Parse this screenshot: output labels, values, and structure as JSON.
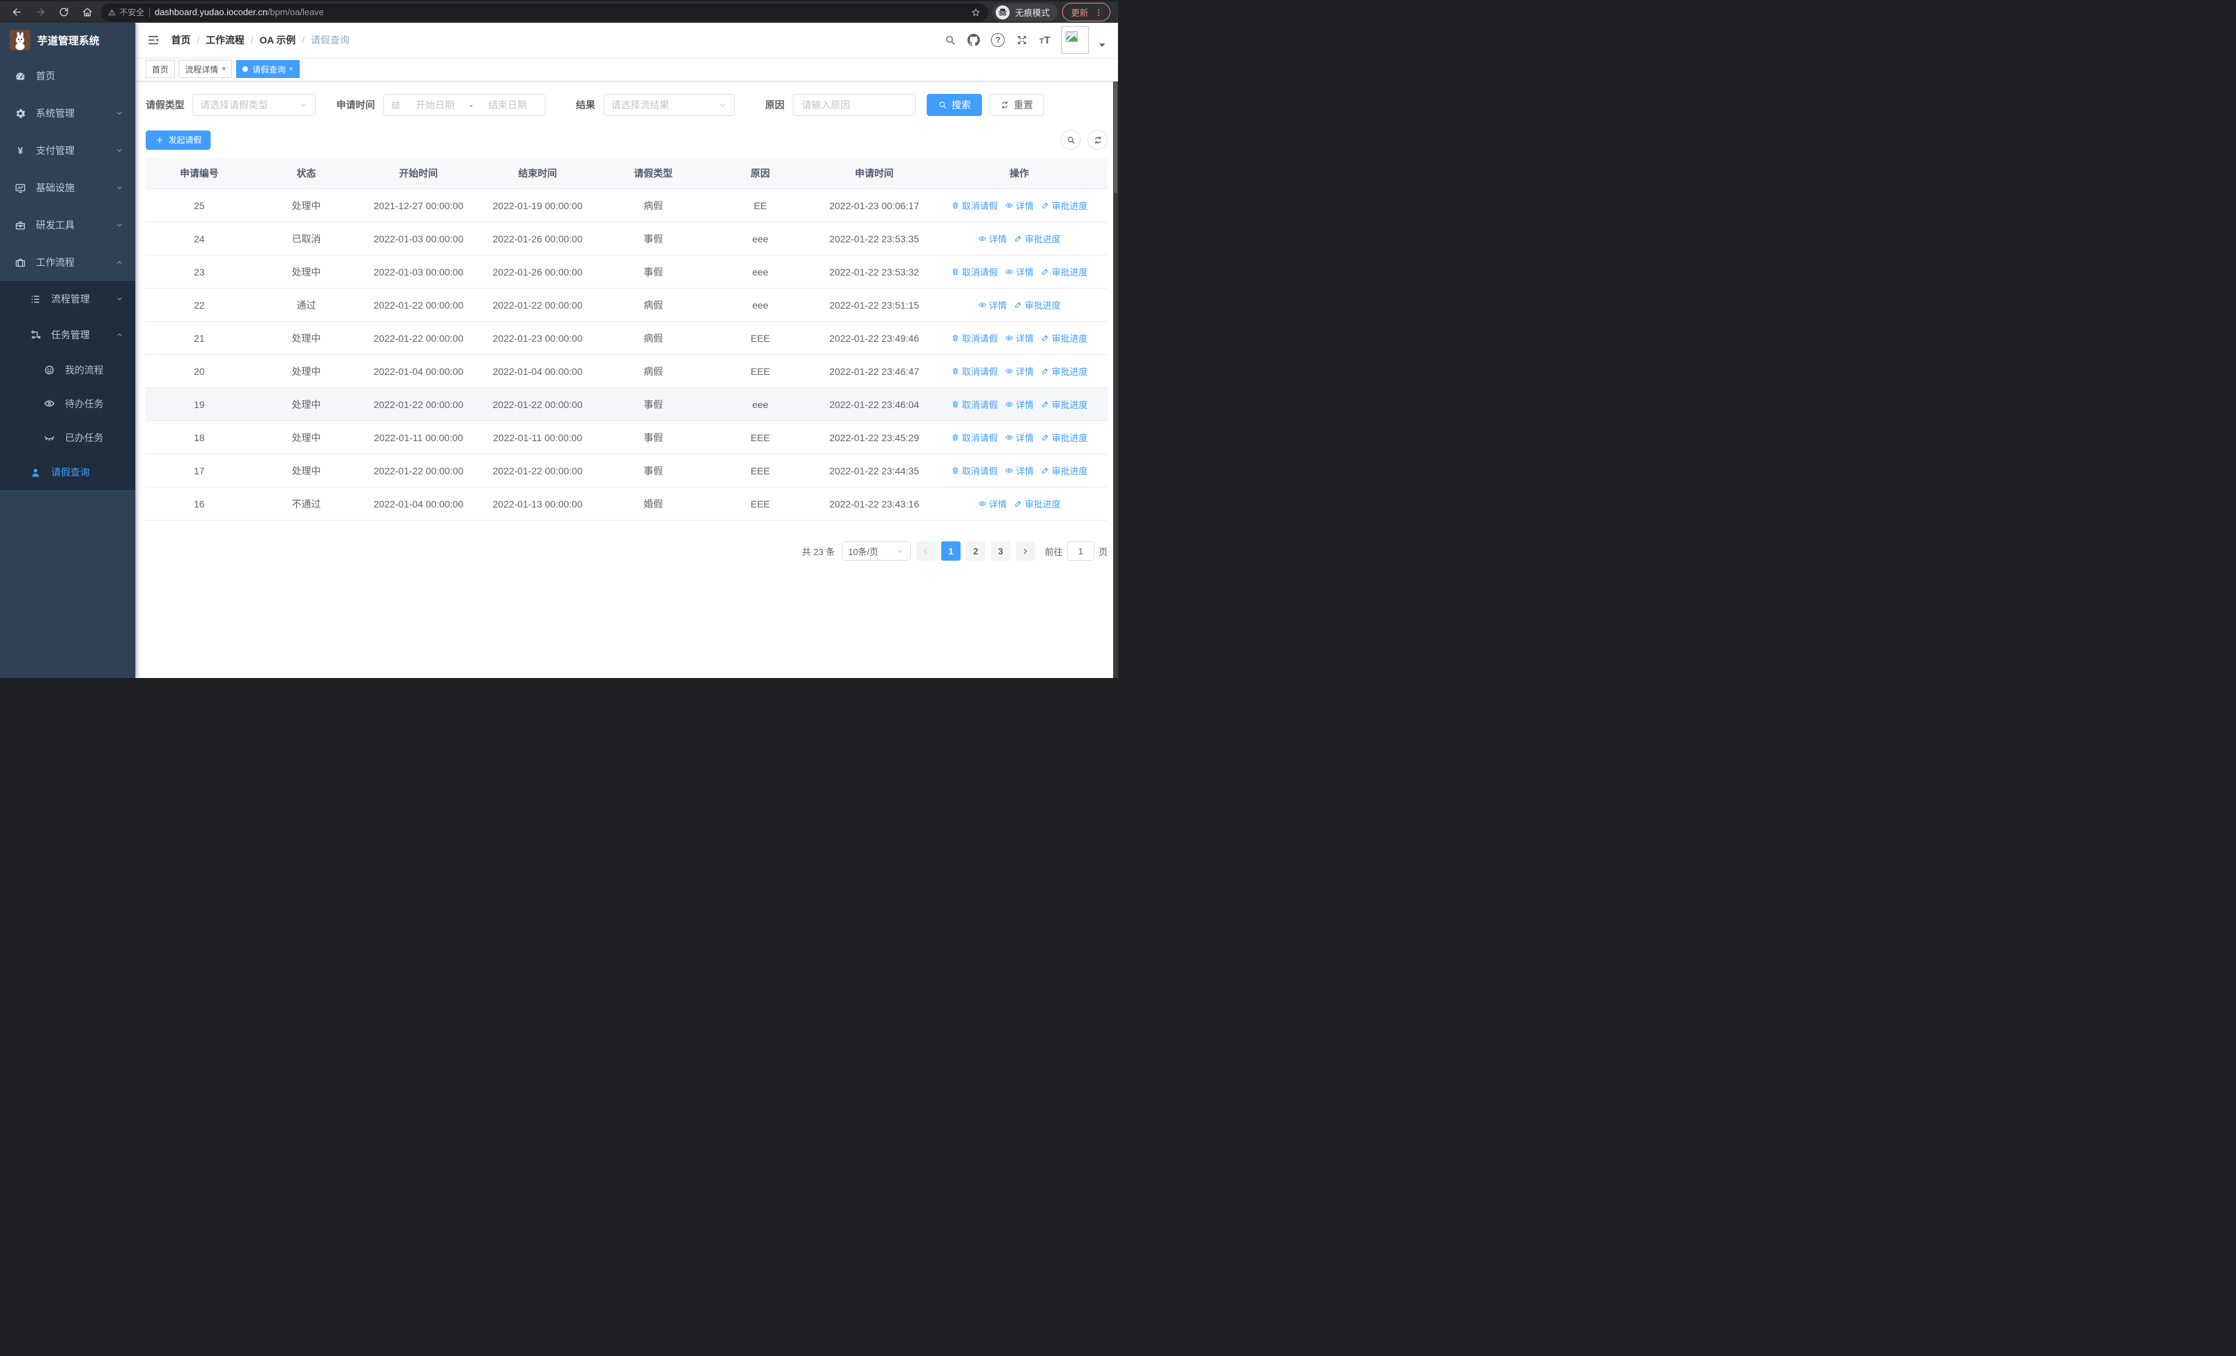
{
  "browser": {
    "security_label": "不安全",
    "url_host": "dashboard.yudao.iocoder.cn",
    "url_path": "/bpm/oa/leave",
    "incognito_label": "无痕模式",
    "update_label": "更新"
  },
  "sidebar": {
    "app_title": "芋道管理系统",
    "items": [
      {
        "label": "首页",
        "icon": "gauge-icon"
      },
      {
        "label": "系统管理",
        "icon": "gear-icon"
      },
      {
        "label": "支付管理",
        "icon": "yen-icon"
      },
      {
        "label": "基础设施",
        "icon": "monitor-icon"
      },
      {
        "label": "研发工具",
        "icon": "toolbox-icon"
      },
      {
        "label": "工作流程",
        "icon": "briefcase-icon"
      }
    ],
    "workflow_submenu": {
      "process_mgmt": "流程管理",
      "task_mgmt": "任务管理",
      "my_process": "我的流程",
      "todo_tasks": "待办任务",
      "done_tasks": "已办任务",
      "leave_query": "请假查询"
    }
  },
  "breadcrumb": {
    "items": [
      "首页",
      "工作流程",
      "OA 示例",
      "请假查询"
    ]
  },
  "tabs": [
    {
      "label": "首页"
    },
    {
      "label": "流程详情"
    },
    {
      "label": "请假查询"
    }
  ],
  "filters": {
    "leave_type_label": "请假类型",
    "leave_type_placeholder": "请选择请假类型",
    "apply_time_label": "申请时间",
    "start_placeholder": "开始日期",
    "range_separator": "-",
    "end_placeholder": "结束日期",
    "result_label": "结果",
    "result_placeholder": "请选择流结果",
    "reason_label": "原因",
    "reason_placeholder": "请输入原因",
    "search_label": "搜索",
    "reset_label": "重置"
  },
  "toolbar": {
    "create_label": "发起请假"
  },
  "table": {
    "headers": [
      "申请编号",
      "状态",
      "开始时间",
      "结束时间",
      "请假类型",
      "原因",
      "申请时间",
      "操作"
    ],
    "rows": [
      {
        "id": "25",
        "status": "处理中",
        "start_time": "2021-12-27 00:00:00",
        "end_time": "2022-01-19 00:00:00",
        "leave_type": "病假",
        "reason": "EE",
        "apply_time": "2022-01-23 00:06:17",
        "actions": [
          {
            "label": "取消请假",
            "icon": "trash",
            "name": "cancel-leave-link"
          },
          {
            "label": "详情",
            "icon": "eye",
            "name": "detail-link"
          },
          {
            "label": "审批进度",
            "icon": "edit",
            "name": "approval-progress-link"
          }
        ]
      },
      {
        "id": "24",
        "status": "已取消",
        "start_time": "2022-01-03 00:00:00",
        "end_time": "2022-01-26 00:00:00",
        "leave_type": "事假",
        "reason": "eee",
        "apply_time": "2022-01-22 23:53:35",
        "actions": [
          {
            "label": "详情",
            "icon": "eye",
            "name": "detail-link"
          },
          {
            "label": "审批进度",
            "icon": "edit",
            "name": "approval-progress-link"
          }
        ]
      },
      {
        "id": "23",
        "status": "处理中",
        "start_time": "2022-01-03 00:00:00",
        "end_time": "2022-01-26 00:00:00",
        "leave_type": "事假",
        "reason": "eee",
        "apply_time": "2022-01-22 23:53:32",
        "actions": [
          {
            "label": "取消请假",
            "icon": "trash",
            "name": "cancel-leave-link"
          },
          {
            "label": "详情",
            "icon": "eye",
            "name": "detail-link"
          },
          {
            "label": "审批进度",
            "icon": "edit",
            "name": "approval-progress-link"
          }
        ]
      },
      {
        "id": "22",
        "status": "通过",
        "start_time": "2022-01-22 00:00:00",
        "end_time": "2022-01-22 00:00:00",
        "leave_type": "病假",
        "reason": "eee",
        "apply_time": "2022-01-22 23:51:15",
        "actions": [
          {
            "label": "详情",
            "icon": "eye",
            "name": "detail-link"
          },
          {
            "label": "审批进度",
            "icon": "edit",
            "name": "approval-progress-link"
          }
        ]
      },
      {
        "id": "21",
        "status": "处理中",
        "start_time": "2022-01-22 00:00:00",
        "end_time": "2022-01-23 00:00:00",
        "leave_type": "病假",
        "reason": "EEE",
        "apply_time": "2022-01-22 23:49:46",
        "actions": [
          {
            "label": "取消请假",
            "icon": "trash",
            "name": "cancel-leave-link"
          },
          {
            "label": "详情",
            "icon": "eye",
            "name": "detail-link"
          },
          {
            "label": "审批进度",
            "icon": "edit",
            "name": "approval-progress-link"
          }
        ]
      },
      {
        "id": "20",
        "status": "处理中",
        "start_time": "2022-01-04 00:00:00",
        "end_time": "2022-01-04 00:00:00",
        "leave_type": "病假",
        "reason": "EEE",
        "apply_time": "2022-01-22 23:46:47",
        "actions": [
          {
            "label": "取消请假",
            "icon": "trash",
            "name": "cancel-leave-link"
          },
          {
            "label": "详情",
            "icon": "eye",
            "name": "detail-link"
          },
          {
            "label": "审批进度",
            "icon": "edit",
            "name": "approval-progress-link"
          }
        ]
      },
      {
        "id": "19",
        "status": "处理中",
        "start_time": "2022-01-22 00:00:00",
        "end_time": "2022-01-22 00:00:00",
        "leave_type": "事假",
        "reason": "eee",
        "apply_time": "2022-01-22 23:46:04",
        "highlighted": true,
        "actions": [
          {
            "label": "取消请假",
            "icon": "trash",
            "name": "cancel-leave-link"
          },
          {
            "label": "详情",
            "icon": "eye",
            "name": "detail-link"
          },
          {
            "label": "审批进度",
            "icon": "edit",
            "name": "approval-progress-link"
          }
        ]
      },
      {
        "id": "18",
        "status": "处理中",
        "start_time": "2022-01-11 00:00:00",
        "end_time": "2022-01-11 00:00:00",
        "leave_type": "事假",
        "reason": "EEE",
        "apply_time": "2022-01-22 23:45:29",
        "actions": [
          {
            "label": "取消请假",
            "icon": "trash",
            "name": "cancel-leave-link"
          },
          {
            "label": "详情",
            "icon": "eye",
            "name": "detail-link"
          },
          {
            "label": "审批进度",
            "icon": "edit",
            "name": "approval-progress-link"
          }
        ]
      },
      {
        "id": "17",
        "status": "处理中",
        "start_time": "2022-01-22 00:00:00",
        "end_time": "2022-01-22 00:00:00",
        "leave_type": "事假",
        "reason": "EEE",
        "apply_time": "2022-01-22 23:44:35",
        "actions": [
          {
            "label": "取消请假",
            "icon": "trash",
            "name": "cancel-leave-link"
          },
          {
            "label": "详情",
            "icon": "eye",
            "name": "detail-link"
          },
          {
            "label": "审批进度",
            "icon": "edit",
            "name": "approval-progress-link"
          }
        ]
      },
      {
        "id": "16",
        "status": "不通过",
        "start_time": "2022-01-04 00:00:00",
        "end_time": "2022-01-13 00:00:00",
        "leave_type": "婚假",
        "reason": "EEE",
        "apply_time": "2022-01-22 23:43:16",
        "actions": [
          {
            "label": "详情",
            "icon": "eye",
            "name": "detail-link"
          },
          {
            "label": "审批进度",
            "icon": "edit",
            "name": "approval-progress-link"
          }
        ]
      }
    ]
  },
  "pagination": {
    "total_label": "共 23 条",
    "page_size_label": "10条/页",
    "pages": [
      "1",
      "2",
      "3"
    ],
    "active_page": "1",
    "goto_label": "前往",
    "goto_value": "1",
    "page_unit_label": "页"
  },
  "colors": {
    "accent": "#409eff",
    "sidebar_bg": "#304156",
    "submenu_bg": "#1f2d3d",
    "update_badge": "#f28b82"
  }
}
